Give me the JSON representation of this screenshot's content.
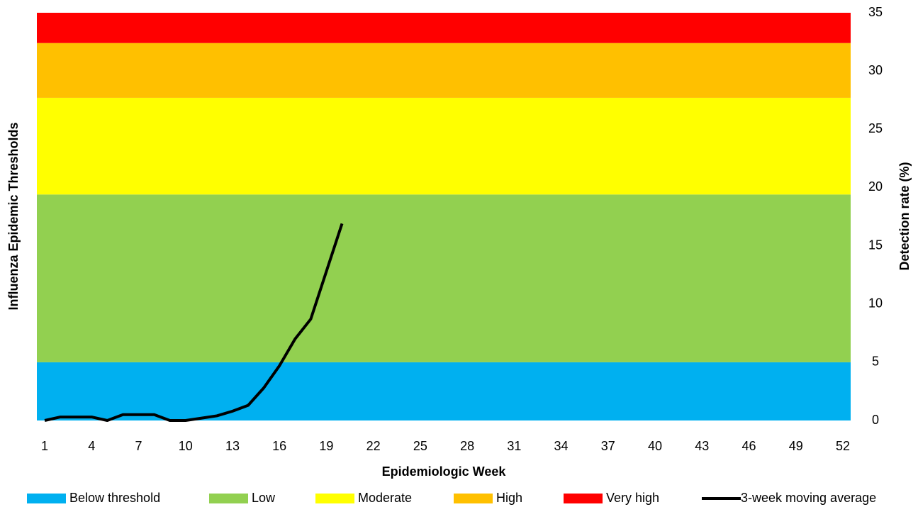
{
  "chart_data": {
    "type": "line",
    "y_axis_label": "Influenza Epidemic Thresholds",
    "y2_axis_label": "Detection rate (%)",
    "x_axis_label": "Epidemiologic Week",
    "xlim": [
      0.5,
      52.5
    ],
    "xticks": [
      1,
      4,
      7,
      10,
      13,
      16,
      19,
      22,
      25,
      28,
      31,
      34,
      37,
      40,
      43,
      46,
      49,
      52
    ],
    "ylim": [
      0,
      35
    ],
    "yticks": [
      0,
      5,
      10,
      15,
      20,
      25,
      30,
      35
    ],
    "value_axis_side": "right",
    "bands": [
      {
        "name": "Below threshold",
        "color": "#00b0f0",
        "value": 5
      },
      {
        "name": "Low",
        "color": "#92d050",
        "value": 14.4
      },
      {
        "name": "Moderate",
        "color": "#ffff00",
        "value": 8.3
      },
      {
        "name": "High",
        "color": "#ffc000",
        "value": 4.7
      },
      {
        "name": "Very high",
        "color": "#ff0000",
        "value": 2.6
      }
    ],
    "series": [
      {
        "name": "3-week moving average",
        "color": "#000000",
        "x": [
          1,
          2,
          3,
          4,
          5,
          6,
          7,
          8,
          9,
          10,
          11,
          12,
          13,
          14,
          15,
          16,
          17,
          18,
          19,
          20
        ],
        "values": [
          0,
          0.3,
          0.3,
          0.3,
          0,
          0.5,
          0.5,
          0.5,
          0,
          0,
          0.2,
          0.4,
          0.8,
          1.3,
          2.8,
          4.7,
          7.0,
          8.7,
          12.8,
          16.9
        ]
      }
    ]
  }
}
